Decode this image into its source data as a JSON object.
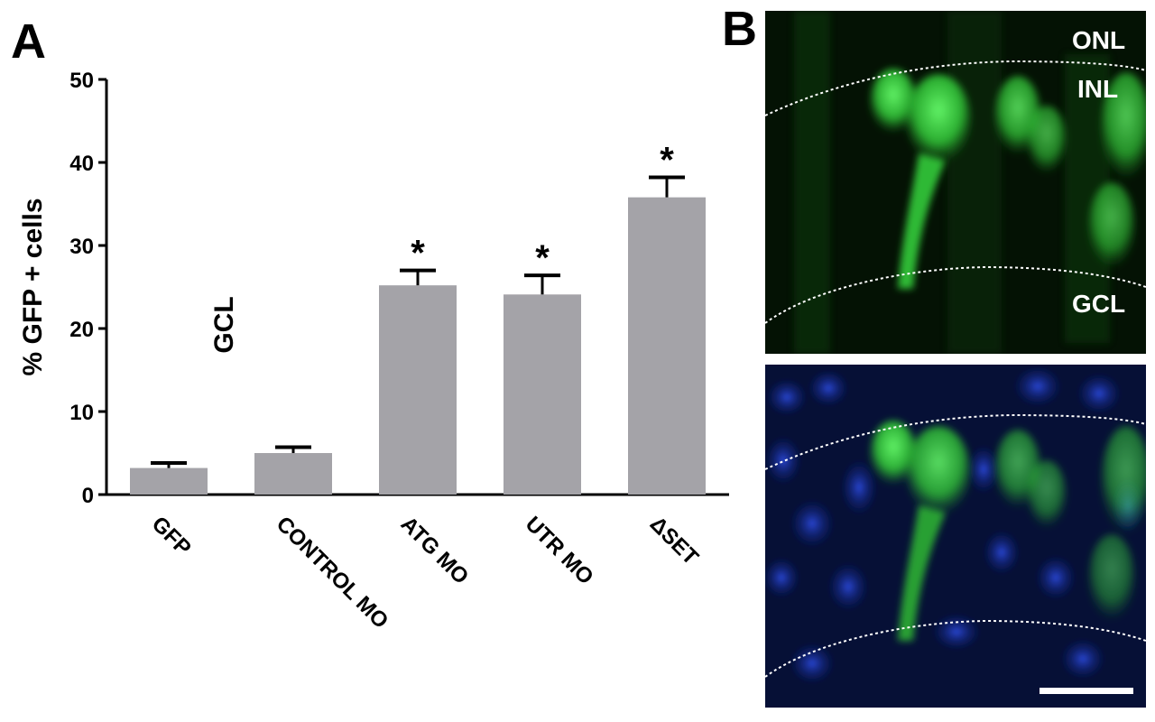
{
  "panels": {
    "a": "A",
    "b": "B"
  },
  "chart_data": {
    "type": "bar",
    "ylabel": "% GFP + cells",
    "ylim": [
      0,
      50
    ],
    "yticks": [
      0,
      10,
      20,
      30,
      40,
      50
    ],
    "categories": [
      "GFP",
      "CONTROL MO",
      "ATG MO",
      "UTR MO",
      "ΔSET"
    ],
    "values": [
      3.2,
      5.0,
      25.2,
      24.1,
      35.8
    ],
    "errors": [
      0.6,
      0.7,
      1.8,
      2.3,
      2.4
    ],
    "significance": [
      "",
      "",
      "*",
      "*",
      "*"
    ],
    "annotation": "GCL",
    "bar_color": "#a4a3a8",
    "grid": false
  },
  "micrograph": {
    "labels": {
      "onl": "ONL",
      "inl": "INL",
      "gcl": "GCL"
    },
    "colors": {
      "gfp": "#33d93a",
      "nuclear": "#1f3fbf",
      "background": "#041204"
    }
  }
}
